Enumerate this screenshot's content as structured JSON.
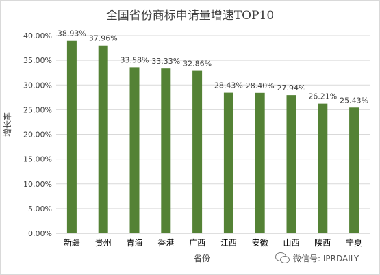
{
  "chart_data": {
    "type": "bar",
    "title": "全国省份商标申请量增速TOP10",
    "xlabel": "省份",
    "ylabel": "增长率",
    "categories": [
      "新疆",
      "贵州",
      "青海",
      "香港",
      "广西",
      "江西",
      "安徽",
      "山西",
      "陕西",
      "宁夏"
    ],
    "values": [
      38.93,
      37.96,
      33.58,
      33.33,
      32.86,
      28.43,
      28.4,
      27.94,
      26.21,
      25.43
    ],
    "value_labels": [
      "38.93%",
      "37.96%",
      "33.58%",
      "33.33%",
      "32.86%",
      "28.43%",
      "28.40%",
      "27.94%",
      "26.21%",
      "25.43%"
    ],
    "yticks": [
      "0.00%",
      "5.00%",
      "10.00%",
      "15.00%",
      "20.00%",
      "25.00%",
      "30.00%",
      "35.00%",
      "40.00%"
    ],
    "ylim": [
      0,
      40
    ],
    "grid": true,
    "bar_color": "#548235",
    "grid_color": "#d9d9d9"
  },
  "watermark": {
    "text": "微信号: IPRDAILY",
    "icon": "wechat-icon"
  }
}
